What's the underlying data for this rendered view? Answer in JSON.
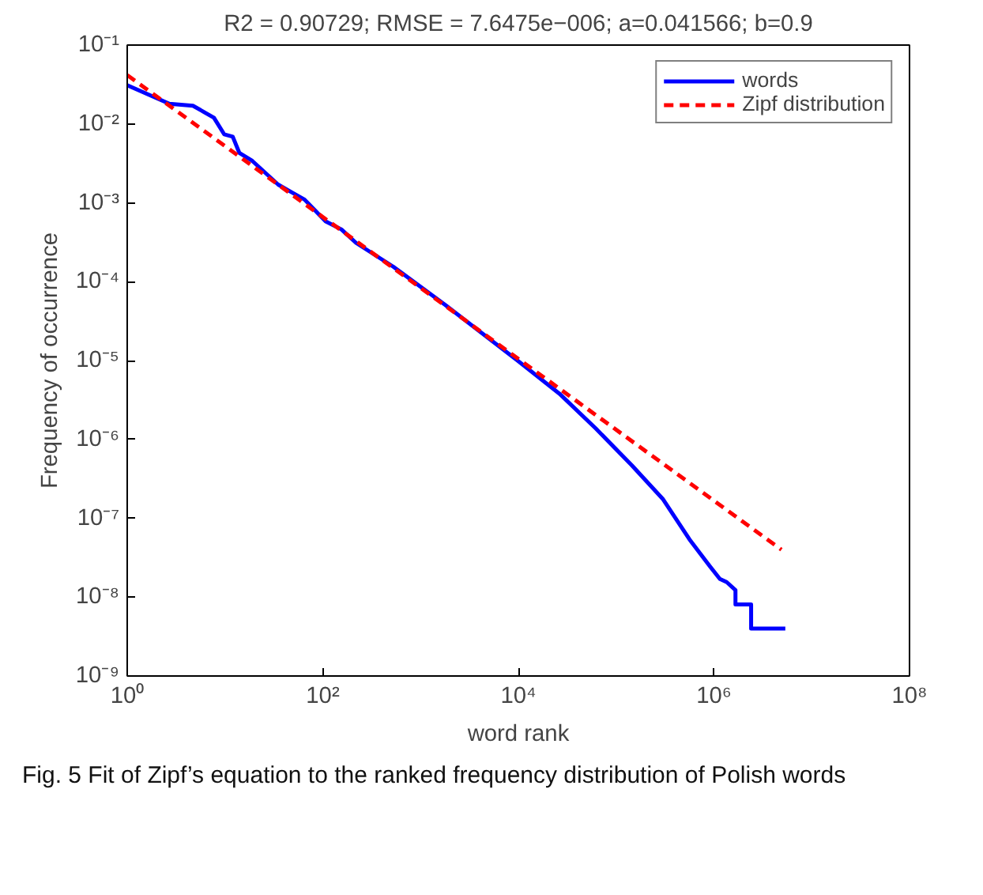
{
  "chart_data": {
    "type": "line",
    "title": "R2 = 0.90729; RMSE = 7.6475e−006; a=0.041566; b=0.9",
    "xlabel": "word rank",
    "ylabel": "Frequency of occurrence",
    "log": "xy",
    "grid": false,
    "legend": "top right",
    "marker": "none",
    "xlim": [
      1,
      100000000
    ],
    "ylim": [
      1e-09,
      0.1
    ],
    "xticks": [
      {
        "value": 1,
        "label": "10⁰"
      },
      {
        "value": 100,
        "label": "10²"
      },
      {
        "value": 10000,
        "label": "10⁴"
      },
      {
        "value": 1000000,
        "label": "10⁶"
      },
      {
        "value": 100000000,
        "label": "10⁸"
      }
    ],
    "yticks": [
      {
        "value": 1e-09,
        "label": "10⁻⁹"
      },
      {
        "value": 1e-08,
        "label": "10⁻⁸"
      },
      {
        "value": 1e-07,
        "label": "10⁻⁷"
      },
      {
        "value": 1e-06,
        "label": "10⁻⁶"
      },
      {
        "value": 1e-05,
        "label": "10⁻⁵"
      },
      {
        "value": 0.0001,
        "label": "10⁻⁴"
      },
      {
        "value": 0.001,
        "label": "10⁻³"
      },
      {
        "value": 0.01,
        "label": "10⁻²"
      },
      {
        "value": 0.1,
        "label": "10⁻¹"
      }
    ],
    "series": [
      {
        "name": "words",
        "color": "#0000ff",
        "line_style": "solid",
        "x": [
          1,
          2.7,
          4.7,
          7.7,
          9.8,
          12,
          14,
          19,
          35,
          46,
          65,
          107,
          155,
          219,
          525,
          1780,
          9800,
          26300,
          61700,
          144500,
          302000,
          562000,
          912000,
          1150000,
          1350000,
          1660000,
          1660000,
          2400000,
          2400000,
          5370000
        ],
        "values": [
          0.031,
          0.018,
          0.017,
          0.012,
          0.0074,
          0.0069,
          0.0043,
          0.0034,
          0.0017,
          0.0014,
          0.0011,
          0.00058,
          0.00046,
          0.00031,
          0.000155,
          5.1e-05,
          1e-05,
          3.8e-06,
          1.38e-06,
          4.7e-07,
          1.74e-07,
          5.4e-08,
          2.45e-08,
          1.7e-08,
          1.55e-08,
          1.23e-08,
          8.1e-09,
          8.1e-09,
          4e-09,
          4e-09
        ]
      },
      {
        "name": "Zipf distribution",
        "color": "#ff0000",
        "line_style": "dashed",
        "x": [
          1,
          4900000
        ],
        "values": [
          0.041566,
          4e-08
        ]
      }
    ],
    "annotations": [
      "Fig. 5 Fit of Zipf’s equation to the ranked frequency distribution of Polish words"
    ]
  }
}
